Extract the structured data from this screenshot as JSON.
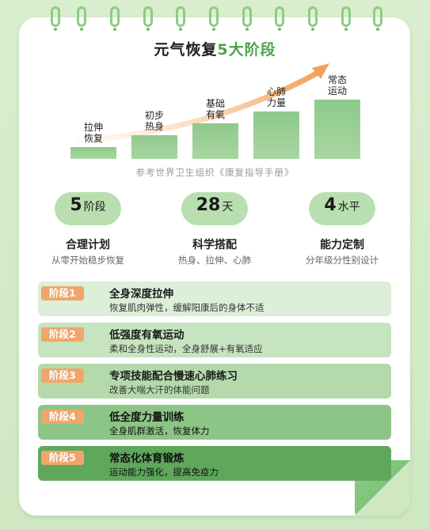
{
  "title_prefix": "元气恢复",
  "title_highlight": "5大阶段",
  "source": "参考世界卫生组织《康复指导手册》",
  "chart_data": {
    "type": "bar",
    "categories": [
      "拉伸\n恢复",
      "初步\n热身",
      "基础\n有氧",
      "心肺\n力量",
      "常态\n运动"
    ],
    "values": [
      1,
      2,
      3,
      4,
      5
    ],
    "title": "元气恢复5大阶段",
    "xlabel": "",
    "ylabel": "",
    "ylim": [
      0,
      5
    ]
  },
  "stats": [
    {
      "num": "5",
      "unit": "阶段",
      "title": "合理计划",
      "sub": "从零开始稳步恢复"
    },
    {
      "num": "28",
      "unit": "天",
      "title": "科学搭配",
      "sub": "热身、拉伸、心肺"
    },
    {
      "num": "4",
      "unit": "水平",
      "title": "能力定制",
      "sub": "分年级分性别设计"
    }
  ],
  "stages": [
    {
      "tag": "阶段1",
      "title": "全身深度拉伸",
      "desc": "恢复肌肉弹性，缓解阳康后的身体不适"
    },
    {
      "tag": "阶段2",
      "title": "低强度有氧运动",
      "desc": "柔和全身性运动，全身舒展+有氧适应"
    },
    {
      "tag": "阶段3",
      "title": "专项技能配合慢速心肺练习",
      "desc": "改善大喘大汗的体能问题"
    },
    {
      "tag": "阶段4",
      "title": "低全度力量训练",
      "desc": "全身肌群激活，恢复体力"
    },
    {
      "tag": "阶段5",
      "title": "常态化体育锻炼",
      "desc": "运动能力强化，提高免疫力"
    }
  ]
}
